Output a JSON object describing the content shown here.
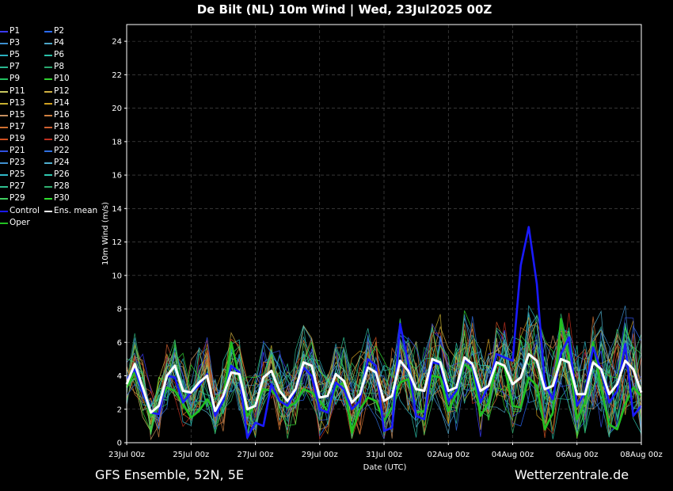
{
  "title": "De Bilt  (NL)  10m Wind | Wed, 23Jul2025 00Z",
  "footer": {
    "left": "GFS Ensemble, 52N, 5E",
    "right": "Wetterzentrale.de"
  },
  "colors": {
    "background": "#000000",
    "grid": "#555555",
    "control": "#1a1aff",
    "ens_mean": "#ffffff",
    "oper": "#22c022"
  },
  "legend": [
    {
      "label": "P1",
      "color": "#3b3bff"
    },
    {
      "label": "P2",
      "color": "#2a6bff"
    },
    {
      "label": "P3",
      "color": "#3d8fd0"
    },
    {
      "label": "P4",
      "color": "#4da6c8"
    },
    {
      "label": "P5",
      "color": "#2ab0c0"
    },
    {
      "label": "P6",
      "color": "#2ac0a8"
    },
    {
      "label": "P7",
      "color": "#2ab890"
    },
    {
      "label": "P8",
      "color": "#2aa870"
    },
    {
      "label": "P9",
      "color": "#22c060"
    },
    {
      "label": "P10",
      "color": "#30d030"
    },
    {
      "label": "P11",
      "color": "#c8c860"
    },
    {
      "label": "P12",
      "color": "#d0b040"
    },
    {
      "label": "P13",
      "color": "#c8b030"
    },
    {
      "label": "P14",
      "color": "#d0a020"
    },
    {
      "label": "P15",
      "color": "#c89060"
    },
    {
      "label": "P16",
      "color": "#d08040"
    },
    {
      "label": "P17",
      "color": "#d07030"
    },
    {
      "label": "P18",
      "color": "#d06030"
    },
    {
      "label": "P19",
      "color": "#d05020"
    },
    {
      "label": "P20",
      "color": "#c03020"
    },
    {
      "label": "P21",
      "color": "#3050e0"
    },
    {
      "label": "P22",
      "color": "#3070e0"
    },
    {
      "label": "P23",
      "color": "#4090d0"
    },
    {
      "label": "P24",
      "color": "#50b0d0"
    },
    {
      "label": "P25",
      "color": "#30b8c8"
    },
    {
      "label": "P26",
      "color": "#30c8b0"
    },
    {
      "label": "P27",
      "color": "#30c090"
    },
    {
      "label": "P28",
      "color": "#30b070"
    },
    {
      "label": "P29",
      "color": "#40d060"
    },
    {
      "label": "P30",
      "color": "#30e030"
    },
    {
      "label": "Control",
      "color": "#1a1aff"
    },
    {
      "label": "Ens. mean",
      "color": "#ffffff"
    },
    {
      "label": "Oper",
      "color": "#22c022"
    }
  ],
  "chart_data": {
    "type": "line",
    "xlabel": "Date (UTC)",
    "ylabel": "10m Wind (m/s)",
    "xlim": [
      "2025-07-23T00Z",
      "2025-08-08T00Z"
    ],
    "ylim": [
      0,
      25
    ],
    "x_ticks": [
      "23Jul 00z",
      "25Jul 00z",
      "27Jul 00z",
      "29Jul 00z",
      "31Jul 00z",
      "02Aug 00z",
      "04Aug 00z",
      "06Aug 00z",
      "08Aug 00z"
    ],
    "y_ticks": [
      0,
      2,
      4,
      6,
      8,
      10,
      12,
      14,
      16,
      18,
      20,
      22,
      24
    ],
    "grid": true,
    "legend_position": "left",
    "time_step_hours": 6,
    "series": [
      {
        "name": "Ens. mean",
        "values": [
          3.5,
          4.7,
          3.3,
          1.8,
          2.2,
          4.0,
          4.6,
          3.1,
          3.0,
          3.6,
          4.0,
          1.9,
          2.8,
          4.2,
          4.1,
          2.0,
          2.2,
          3.9,
          4.3,
          3.1,
          2.5,
          3.2,
          4.8,
          4.6,
          2.7,
          2.8,
          4.1,
          3.7,
          2.4,
          2.9,
          4.5,
          4.2,
          2.5,
          2.8,
          4.9,
          4.3,
          3.2,
          3.1,
          5.0,
          4.8,
          3.1,
          3.3,
          5.1,
          4.7,
          3.1,
          3.4,
          4.8,
          4.6,
          3.5,
          3.9,
          5.3,
          4.9,
          3.2,
          3.4,
          5.0,
          4.8,
          2.9,
          2.9,
          4.8,
          4.4,
          2.9,
          3.5,
          4.9,
          4.4,
          3.0
        ]
      },
      {
        "name": "Control",
        "values": [
          3.8,
          4.4,
          3.0,
          1.8,
          1.7,
          4.0,
          3.9,
          2.4,
          3.0,
          3.4,
          4.1,
          1.6,
          2.5,
          4.6,
          4.2,
          0.3,
          1.2,
          1.0,
          3.5,
          2.5,
          2.2,
          3.1,
          4.5,
          4.0,
          2.0,
          1.8,
          3.6,
          3.2,
          2.0,
          2.5,
          5.0,
          4.6,
          0.7,
          0.9,
          7.1,
          4.8,
          1.6,
          1.4,
          4.8,
          4.7,
          2.5,
          3.1,
          5.0,
          4.6,
          2.4,
          3.4,
          5.3,
          5.1,
          4.9,
          10.6,
          12.9,
          9.5,
          3.5,
          2.6,
          5.3,
          6.3,
          2.2,
          3.0,
          5.7,
          4.3,
          2.4,
          3.1,
          5.9,
          1.6,
          2.2
        ]
      },
      {
        "name": "Oper",
        "values": [
          3.3,
          4.2,
          3.0,
          1.6,
          2.2,
          3.3,
          3.1,
          2.3,
          1.5,
          1.9,
          2.6,
          1.9,
          2.7,
          6.0,
          3.9,
          1.6,
          2.3,
          3.2,
          3.1,
          2.6,
          2.1,
          2.4,
          3.2,
          3.0,
          2.5,
          1.9,
          3.3,
          3.6,
          0.6,
          2.0,
          2.7,
          2.5,
          1.3,
          2.1,
          3.6,
          3.8,
          1.8,
          1.9,
          4.0,
          3.9,
          1.9,
          2.9,
          4.7,
          4.3,
          1.6,
          2.4,
          4.7,
          4.5,
          2.2,
          2.1,
          3.9,
          3.4,
          0.8,
          1.8,
          7.4,
          5.0,
          1.4,
          2.4,
          6.0,
          3.2,
          1.1,
          0.8,
          2.3,
          3.3,
          2.8
        ]
      }
    ]
  }
}
